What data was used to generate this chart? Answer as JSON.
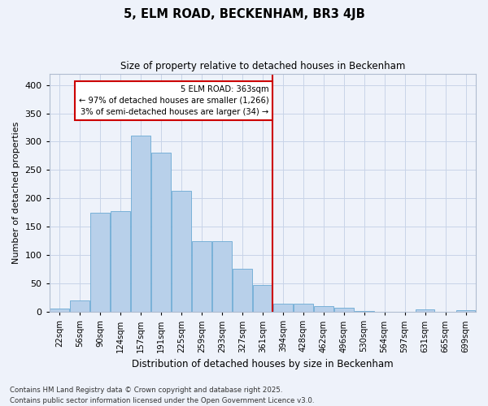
{
  "title": "5, ELM ROAD, BECKENHAM, BR3 4JB",
  "subtitle": "Size of property relative to detached houses in Beckenham",
  "xlabel": "Distribution of detached houses by size in Beckenham",
  "ylabel": "Number of detached properties",
  "bin_labels": [
    "22sqm",
    "56sqm",
    "90sqm",
    "124sqm",
    "157sqm",
    "191sqm",
    "225sqm",
    "259sqm",
    "293sqm",
    "327sqm",
    "361sqm",
    "394sqm",
    "428sqm",
    "462sqm",
    "496sqm",
    "530sqm",
    "564sqm",
    "597sqm",
    "631sqm",
    "665sqm",
    "699sqm"
  ],
  "bar_heights": [
    6,
    20,
    175,
    178,
    310,
    280,
    213,
    125,
    125,
    76,
    48,
    14,
    14,
    10,
    8,
    2,
    1,
    0,
    4,
    0,
    3
  ],
  "bar_color": "#b8d0ea",
  "bar_edgecolor": "#6aaad4",
  "grid_color": "#c8d4e8",
  "background_color": "#eef2fa",
  "vline_color": "#cc0000",
  "annotation_text": "5 ELM ROAD: 363sqm\n← 97% of detached houses are smaller (1,266)\n3% of semi-detached houses are larger (34) →",
  "annotation_box_color": "#ffffff",
  "annotation_box_edgecolor": "#cc0000",
  "ylim": [
    0,
    420
  ],
  "yticks": [
    0,
    50,
    100,
    150,
    200,
    250,
    300,
    350,
    400
  ],
  "footnote1": "Contains HM Land Registry data © Crown copyright and database right 2025.",
  "footnote2": "Contains public sector information licensed under the Open Government Licence v3.0."
}
